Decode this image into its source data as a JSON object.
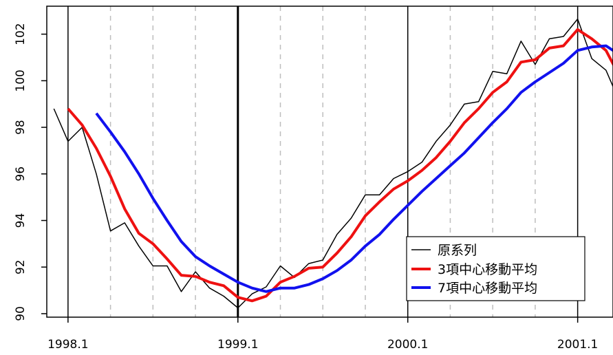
{
  "chart_data": {
    "type": "line",
    "title": "",
    "xlabel": "",
    "ylabel": "",
    "xlim": [
      1997.875,
      2001.208
    ],
    "ylim": [
      89.85,
      103.2
    ],
    "x_ticks": [
      {
        "value": 1998.0,
        "label": "1998.1"
      },
      {
        "value": 1999.0,
        "label": "1999.1"
      },
      {
        "value": 2000.0,
        "label": "2000.1"
      },
      {
        "value": 2001.0,
        "label": "2001.1"
      }
    ],
    "y_ticks": [
      {
        "value": 90,
        "label": "90"
      },
      {
        "value": 92,
        "label": "92"
      },
      {
        "value": 94,
        "label": "94"
      },
      {
        "value": 96,
        "label": "96"
      },
      {
        "value": 98,
        "label": "98"
      },
      {
        "value": 100,
        "label": "100"
      },
      {
        "value": 102,
        "label": "102"
      }
    ],
    "year_lines": [
      1998.0,
      1999.0,
      2000.0,
      2001.0
    ],
    "quarter_lines": [
      1998.25,
      1998.5,
      1998.75,
      1999.25,
      1999.5,
      1999.75,
      2000.25,
      2000.5,
      2000.75,
      2001.25
    ],
    "x_start": 1997.9167,
    "x_step": 0.08333,
    "grid": "dashed vertical at quarters, solid vertical at years",
    "legend_position": "bottom-right",
    "colors": {
      "original": "#000000",
      "ma3": "#ee1111",
      "ma7": "#1111ee",
      "quarter_grid": "#bdbdbd",
      "year_grid": "#000000"
    },
    "series": [
      {
        "name": "原系列",
        "values": [
          98.8,
          97.4,
          98.0,
          96.0,
          93.55,
          93.9,
          92.9,
          92.05,
          92.05,
          90.95,
          91.8,
          91.1,
          90.75,
          90.25,
          90.85,
          91.15,
          92.05,
          91.55,
          92.15,
          92.3,
          93.4,
          94.1,
          95.1,
          95.1,
          95.8,
          96.1,
          96.5,
          97.4,
          98.1,
          99.0,
          99.1,
          100.4,
          100.3,
          101.7,
          100.7,
          101.8,
          101.9,
          102.65,
          100.95,
          100.45,
          99.05
        ]
      },
      {
        "name": "3項中心移動平均",
        "values": [
          98.8,
          98.1,
          97.1,
          95.9,
          94.5,
          93.45,
          93.0,
          92.35,
          91.65,
          91.6,
          91.35,
          91.2,
          90.7,
          90.55,
          90.75,
          91.35,
          91.6,
          91.95,
          92.0,
          92.6,
          93.3,
          94.2,
          94.8,
          95.35,
          95.7,
          96.15,
          96.7,
          97.4,
          98.2,
          98.8,
          99.5,
          99.95,
          100.8,
          100.9,
          101.4,
          101.5,
          102.2,
          101.8,
          101.3,
          100.15
        ]
      },
      {
        "name": "7項中心移動平均",
        "values": [
          98.6,
          97.8,
          96.95,
          96.0,
          94.95,
          94.0,
          93.1,
          92.45,
          92.05,
          91.7,
          91.35,
          91.1,
          90.95,
          91.1,
          91.1,
          91.25,
          91.5,
          91.85,
          92.3,
          92.9,
          93.4,
          94.05,
          94.65,
          95.25,
          95.8,
          96.35,
          96.9,
          97.55,
          98.2,
          98.8,
          99.5,
          99.95,
          100.35,
          100.75,
          101.3,
          101.45,
          101.5,
          101.1
        ]
      }
    ]
  }
}
